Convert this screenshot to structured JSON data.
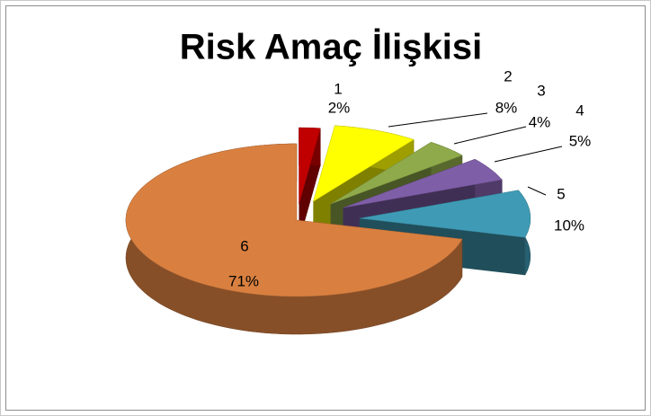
{
  "chart_data": {
    "type": "pie",
    "title": "Risk Amaç İlişkisi",
    "categories": [
      "1",
      "2",
      "3",
      "4",
      "5",
      "6"
    ],
    "values": [
      2,
      8,
      4,
      5,
      10,
      71
    ],
    "value_labels": [
      "2%",
      "8%",
      "4%",
      "5%",
      "10%",
      "71%"
    ],
    "colors": [
      "#c00000",
      "#ffff00",
      "#8faa4a",
      "#7f5ea8",
      "#3f9bb5",
      "#d98040"
    ]
  }
}
